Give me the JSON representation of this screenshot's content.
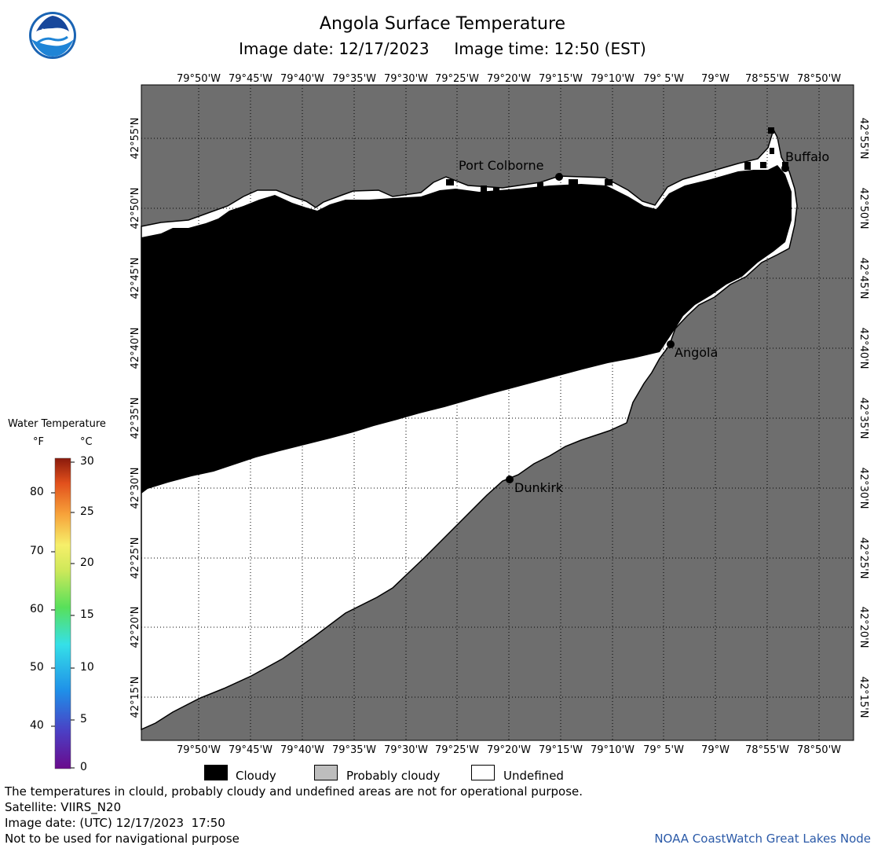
{
  "header": {
    "title": "Angola Surface Temperature",
    "image_date": "Image date: 12/17/2023",
    "image_time": "Image time: 12:50 (EST)",
    "logo_text": "NOAA"
  },
  "map": {
    "lon_labels": [
      "79°50'W",
      "79°45'W",
      "79°40'W",
      "79°35'W",
      "79°30'W",
      "79°25'W",
      "79°20'W",
      "79°15'W",
      "79°10'W",
      "79° 5'W",
      "79°W",
      "78°55'W",
      "78°50'W"
    ],
    "lat_labels": [
      "42°55'N",
      "42°50'N",
      "42°45'N",
      "42°40'N",
      "42°35'N",
      "42°30'N",
      "42°25'N",
      "42°20'N",
      "42°15'N"
    ],
    "places": [
      {
        "name": "Port Colborne"
      },
      {
        "name": "Buffalo"
      },
      {
        "name": "Angola"
      },
      {
        "name": "Dunkirk"
      }
    ],
    "colors": {
      "land": "#6e6e6e",
      "cloudy": "#000000",
      "undefined": "#ffffff",
      "grid": "#000000"
    }
  },
  "color_scale": {
    "title": "Water Temperature",
    "unit_f": "°F",
    "unit_c": "°C",
    "f_labels": [
      "80",
      "70",
      "60",
      "50",
      "40"
    ],
    "c_labels": [
      "30",
      "25",
      "20",
      "15",
      "10",
      "5",
      "0"
    ]
  },
  "key": {
    "cloudy": "Cloudy",
    "probably_cloudy": "Probably cloudy",
    "undefined": "Undefined",
    "colors": {
      "cloudy": "#000000",
      "probably_cloudy": "#bdbdbd",
      "undefined": "#ffffff"
    }
  },
  "footer": {
    "disclaimer": "The temperatures in clould, probably cloudy and undefined areas are not for operational purpose.",
    "satellite": "Satellite: VIIRS_N20",
    "utc_date": "Image date: (UTC) 12/17/2023  17:50",
    "nav_warning": "Not to be used for navigational purpose",
    "credit": "NOAA CoastWatch Great Lakes Node"
  }
}
